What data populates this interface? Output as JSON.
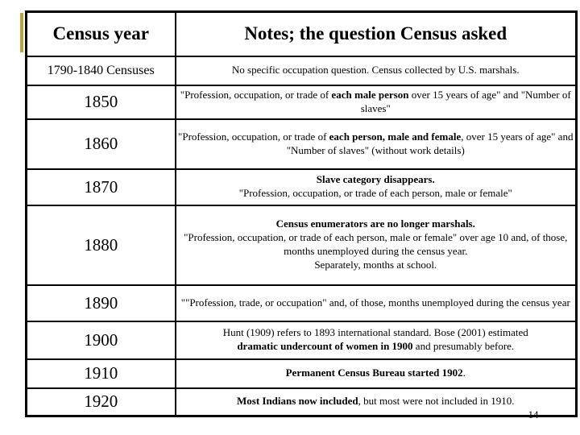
{
  "page_number": "14",
  "accent_color": "#C0A038",
  "table": {
    "headers": [
      {
        "label": "Census year"
      },
      {
        "label": "Notes; the question Census asked"
      }
    ],
    "rows": [
      {
        "year": "1790-1840 Censuses",
        "note": [
          {
            "t": "No specific occupation question. Census collected by U.S. marshals.",
            "b": false
          }
        ]
      },
      {
        "year": "1850",
        "note": [
          {
            "t": "\"Profession, occupation, or trade of ",
            "b": false
          },
          {
            "t": "each male person",
            "b": true
          },
          {
            "t": " over 15 years of age\" and \"Number of slaves\"",
            "b": false
          }
        ]
      },
      {
        "year": "1860",
        "note": [
          {
            "t": "\"Profession, occupation, or trade of ",
            "b": false
          },
          {
            "t": "each person, male and female",
            "b": true
          },
          {
            "t": ", over 15 years of age\" and \"Number of slaves\" (without work details)",
            "b": false
          }
        ]
      },
      {
        "year": "1870",
        "note": [
          {
            "t": "Slave category disappears.",
            "b": true
          },
          {
            "t": "\n\"Profession, occupation, or trade of each person, male or female\"",
            "b": false
          }
        ]
      },
      {
        "year": "1880",
        "note": [
          {
            "t": "Census enumerators are no longer marshals.",
            "b": true
          },
          {
            "t": "\n\"Profession, occupation, or trade of each person, male or female\" over age 10 and, of those, months unemployed during the census year.\nSeparately, months at school.",
            "b": false
          }
        ]
      },
      {
        "year": "1890",
        "note": [
          {
            "t": "\"\"Profession, trade, or occupation\" and, of those, months unemployed during the census year",
            "b": false
          }
        ]
      },
      {
        "year": "1900",
        "note": [
          {
            "t": "Hunt (1909) refers to 1893 international standard.  Bose (2001) estimated\n",
            "b": false
          },
          {
            "t": "dramatic undercount of women in 1900",
            "b": true
          },
          {
            "t": " and presumably before.",
            "b": false
          }
        ]
      },
      {
        "year": "1910",
        "note": [
          {
            "t": "Permanent Census Bureau started 1902",
            "b": true
          },
          {
            "t": ".",
            "b": false
          }
        ]
      },
      {
        "year": "1920",
        "note": [
          {
            "t": "Most Indians now included",
            "b": true
          },
          {
            "t": ", but most were not included in 1910.",
            "b": false
          }
        ]
      }
    ]
  }
}
